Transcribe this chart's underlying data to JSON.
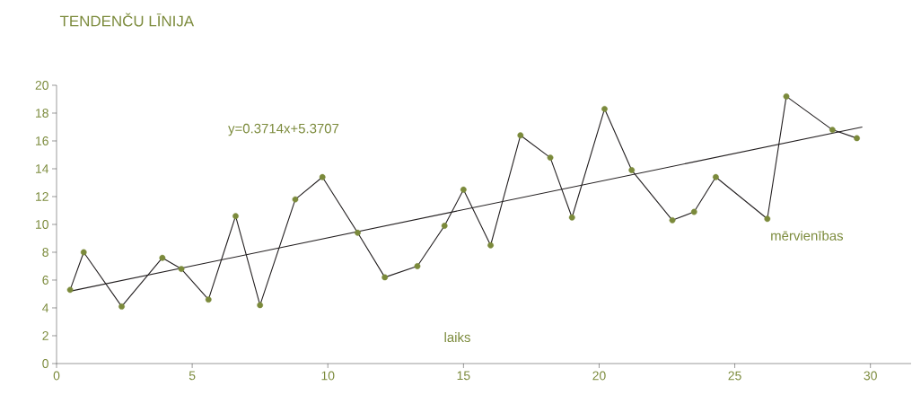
{
  "chart_data": {
    "type": "line",
    "title": "TENDENČU LĪNIJA",
    "xlabel": "laiks",
    "ylabel": "mērvienības",
    "annotations": [
      "y=0.3714x+5.3707"
    ],
    "xlim": [
      0,
      31.5
    ],
    "ylim": [
      0,
      20
    ],
    "xticks": [
      0,
      5,
      10,
      15,
      20,
      25,
      30
    ],
    "yticks": [
      0,
      2,
      4,
      6,
      8,
      10,
      12,
      14,
      16,
      18,
      20
    ],
    "grid": false,
    "line_style": "solid",
    "series": [
      {
        "marker": "circle",
        "color": "#231f20",
        "colors": [
          "#7b8a3b",
          "#7b8a3b",
          "#7b8a3b",
          "#7b8a3b",
          "#7b8a3b",
          "#7b8a3b",
          "#7b8a3b",
          "#7b8a3b",
          "#7b8a3b",
          "#7b8a3b",
          "#7b8a3b",
          "#7b8a3b",
          "#7b8a3b",
          "#7b8a3b",
          "#7b8a3b",
          "#7b8a3b",
          "#7b8a3b",
          "#7b8a3b",
          "#7b8a3b",
          "#7b8a3b",
          "#7b8a3b",
          "#7b8a3b",
          "#7b8a3b",
          "#7b8a3b",
          "#7b8a3b",
          "#7b8a3b",
          "#7b8a3b",
          "#7b8a3b"
        ],
        "x": [
          0.5,
          1.0,
          2.4,
          3.9,
          4.6,
          5.6,
          6.6,
          7.5,
          8.8,
          9.8,
          11.1,
          12.1,
          13.3,
          14.3,
          15.0,
          16.0,
          17.1,
          18.2,
          19.0,
          20.2,
          21.2,
          22.7,
          23.5,
          24.3,
          26.2,
          26.9,
          28.6,
          29.5
        ],
        "values": [
          5.3,
          8.0,
          4.1,
          7.6,
          6.8,
          4.6,
          10.6,
          4.2,
          11.8,
          13.4,
          9.4,
          6.2,
          7.0,
          9.9,
          12.5,
          8.5,
          16.4,
          14.8,
          10.5,
          18.3,
          13.9,
          10.3,
          10.9,
          13.4,
          10.4,
          19.2,
          16.8,
          16.2
        ]
      },
      {
        "marker": "none",
        "color": "#231f20",
        "x": [
          0.5,
          29.7
        ],
        "values": [
          5.2,
          17.0
        ]
      }
    ]
  }
}
